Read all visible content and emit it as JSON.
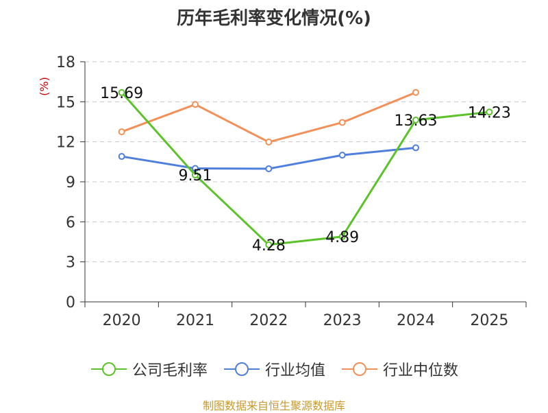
{
  "chart_data": {
    "type": "line",
    "title": "历年毛利率变化情况(%)",
    "ylabel": "(%)",
    "categories": [
      "2020",
      "2021",
      "2022",
      "2023",
      "2024",
      "2025"
    ],
    "ylim": [
      0,
      18
    ],
    "yticks": [
      0,
      3,
      6,
      9,
      12,
      15,
      18
    ],
    "grid": "horizontal dashed",
    "legend_position": "bottom",
    "series": [
      {
        "name": "公司毛利率",
        "color": "#5cc22a",
        "values": [
          15.69,
          9.51,
          4.28,
          4.89,
          13.63,
          14.23
        ],
        "labels": [
          "15.69",
          "9.51",
          "4.28",
          "4.89",
          "13.63",
          "14.23"
        ]
      },
      {
        "name": "行业均值",
        "color": "#4f7fdc",
        "values": [
          10.9,
          10.0,
          9.98,
          11.0,
          11.55,
          null
        ]
      },
      {
        "name": "行业中位数",
        "color": "#f39057",
        "values": [
          12.75,
          14.8,
          11.98,
          13.45,
          15.7,
          null
        ]
      }
    ]
  },
  "source": "制图数据来自恒生聚源数据库"
}
